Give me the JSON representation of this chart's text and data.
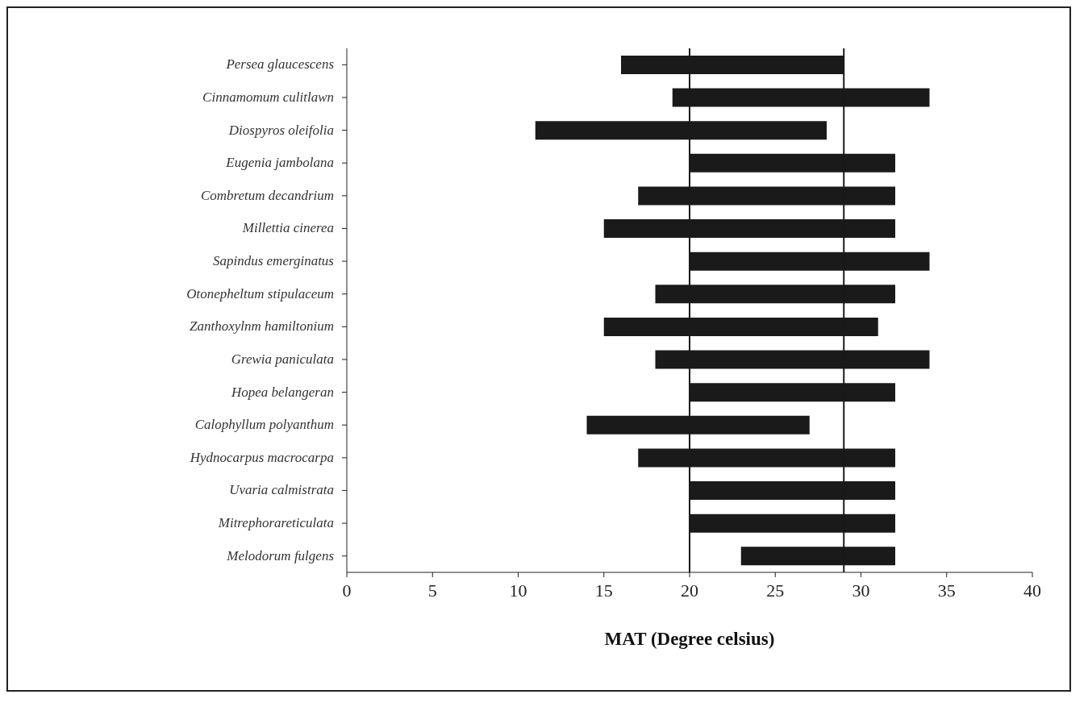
{
  "chart_data": {
    "type": "bar",
    "orientation": "horizontal",
    "xlabel": "MAT  (Degree celsius)",
    "categories": [
      "Persea glaucescens",
      "Cinnamomum culitlawn",
      "Diospyros oleifolia",
      "Eugenia jambolana",
      "Combretum decandrium",
      "Millettia cinerea",
      "Sapindus emerginatus",
      "Otonepheltum stipulaceum",
      "Zanthoxylnm hamiltonium",
      "Grewia paniculata",
      "Hopea belangeran",
      "Calophyllum polyanthum",
      "Hydnocarpus macrocarpa",
      "Uvaria calmistrata",
      "Mitrephorareticulata",
      "Melodorum fulgens"
    ],
    "base": [
      16,
      19,
      11,
      20,
      17,
      15,
      20,
      18,
      15,
      18,
      20,
      14,
      17,
      20,
      20,
      23
    ],
    "values": [
      13,
      15,
      17,
      12,
      15,
      17,
      14,
      14,
      16,
      16,
      12,
      13,
      15,
      12,
      12,
      9
    ],
    "color": "#1a1a1a",
    "xlim": [
      0,
      40
    ],
    "xticks": [
      0,
      5,
      10,
      15,
      20,
      25,
      30,
      35,
      40
    ],
    "ref_lines": [
      {
        "axis": "x",
        "value": 20,
        "color": "#1a1a1a"
      },
      {
        "axis": "x",
        "value": 29,
        "color": "#1a1a1a"
      }
    ]
  }
}
